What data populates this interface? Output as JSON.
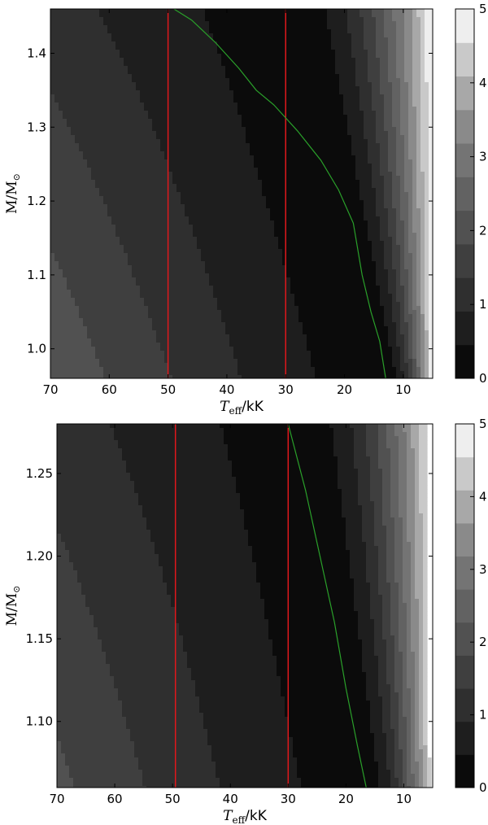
{
  "chart_data": [
    {
      "type": "heatmap",
      "xlabel_symbol": "T",
      "xlabel_sub": "eff",
      "xlabel_unit": "/kK",
      "ylabel_main": "M/M",
      "ylabel_sub": "⊙",
      "xlim": [
        70,
        5
      ],
      "ylim": [
        0.96,
        1.46
      ],
      "xticks": [
        70,
        60,
        50,
        40,
        30,
        20,
        10
      ],
      "yticks": [
        1.0,
        1.1,
        1.2,
        1.3,
        1.4
      ],
      "ytick_labels": [
        "1.0",
        "1.1",
        "1.2",
        "1.3",
        "1.4"
      ],
      "colorbar": {
        "min": 0,
        "max": 5,
        "ticks": [
          0,
          1,
          2,
          3,
          4,
          5
        ],
        "levels": 11,
        "colors": [
          "#0b0b0b",
          "#1e1e1e",
          "#2f2f2f",
          "#3f3f3f",
          "#515151",
          "#626262",
          "#747474",
          "#8a8a8a",
          "#a8a8a8",
          "#c9c9c9",
          "#eeeeee"
        ]
      },
      "red_lines_teff": [
        50,
        30
      ],
      "green_curve": [
        [
          49,
          1.46
        ],
        [
          46,
          1.445
        ],
        [
          42,
          1.415
        ],
        [
          38,
          1.38
        ],
        [
          35,
          1.35
        ],
        [
          32,
          1.33
        ],
        [
          28,
          1.295
        ],
        [
          24,
          1.255
        ],
        [
          21,
          1.215
        ],
        [
          18.5,
          1.17
        ],
        [
          17,
          1.1
        ],
        [
          15.5,
          1.05
        ],
        [
          14,
          1.01
        ],
        [
          13,
          0.96
        ]
      ],
      "red_line_color": "#e0181c",
      "green_line_color": "#2aa02a"
    },
    {
      "type": "heatmap",
      "xlabel_symbol": "T",
      "xlabel_sub": "eff",
      "xlabel_unit": "/kK",
      "ylabel_main": "M/M",
      "ylabel_sub": "⊙",
      "xlim": [
        70,
        5
      ],
      "ylim": [
        1.06,
        1.28
      ],
      "xticks": [
        70,
        60,
        50,
        40,
        30,
        20,
        10
      ],
      "yticks": [
        1.1,
        1.15,
        1.2,
        1.25
      ],
      "ytick_labels": [
        "1.10",
        "1.15",
        "1.20",
        "1.25"
      ],
      "colorbar": {
        "min": 0,
        "max": 5,
        "ticks": [
          0,
          1,
          2,
          3,
          4,
          5
        ],
        "levels": 11,
        "colors": [
          "#0b0b0b",
          "#1e1e1e",
          "#2f2f2f",
          "#3f3f3f",
          "#515151",
          "#626262",
          "#747474",
          "#8a8a8a",
          "#a8a8a8",
          "#c9c9c9",
          "#eeeeee"
        ]
      },
      "red_lines_teff": [
        49.5,
        30
      ],
      "green_curve": [
        [
          30,
          1.28
        ],
        [
          27,
          1.24
        ],
        [
          24.5,
          1.2
        ],
        [
          22,
          1.16
        ],
        [
          20,
          1.12
        ],
        [
          18,
          1.085
        ],
        [
          16.5,
          1.06
        ]
      ],
      "red_line_color": "#e0181c",
      "green_line_color": "#2aa02a"
    }
  ]
}
